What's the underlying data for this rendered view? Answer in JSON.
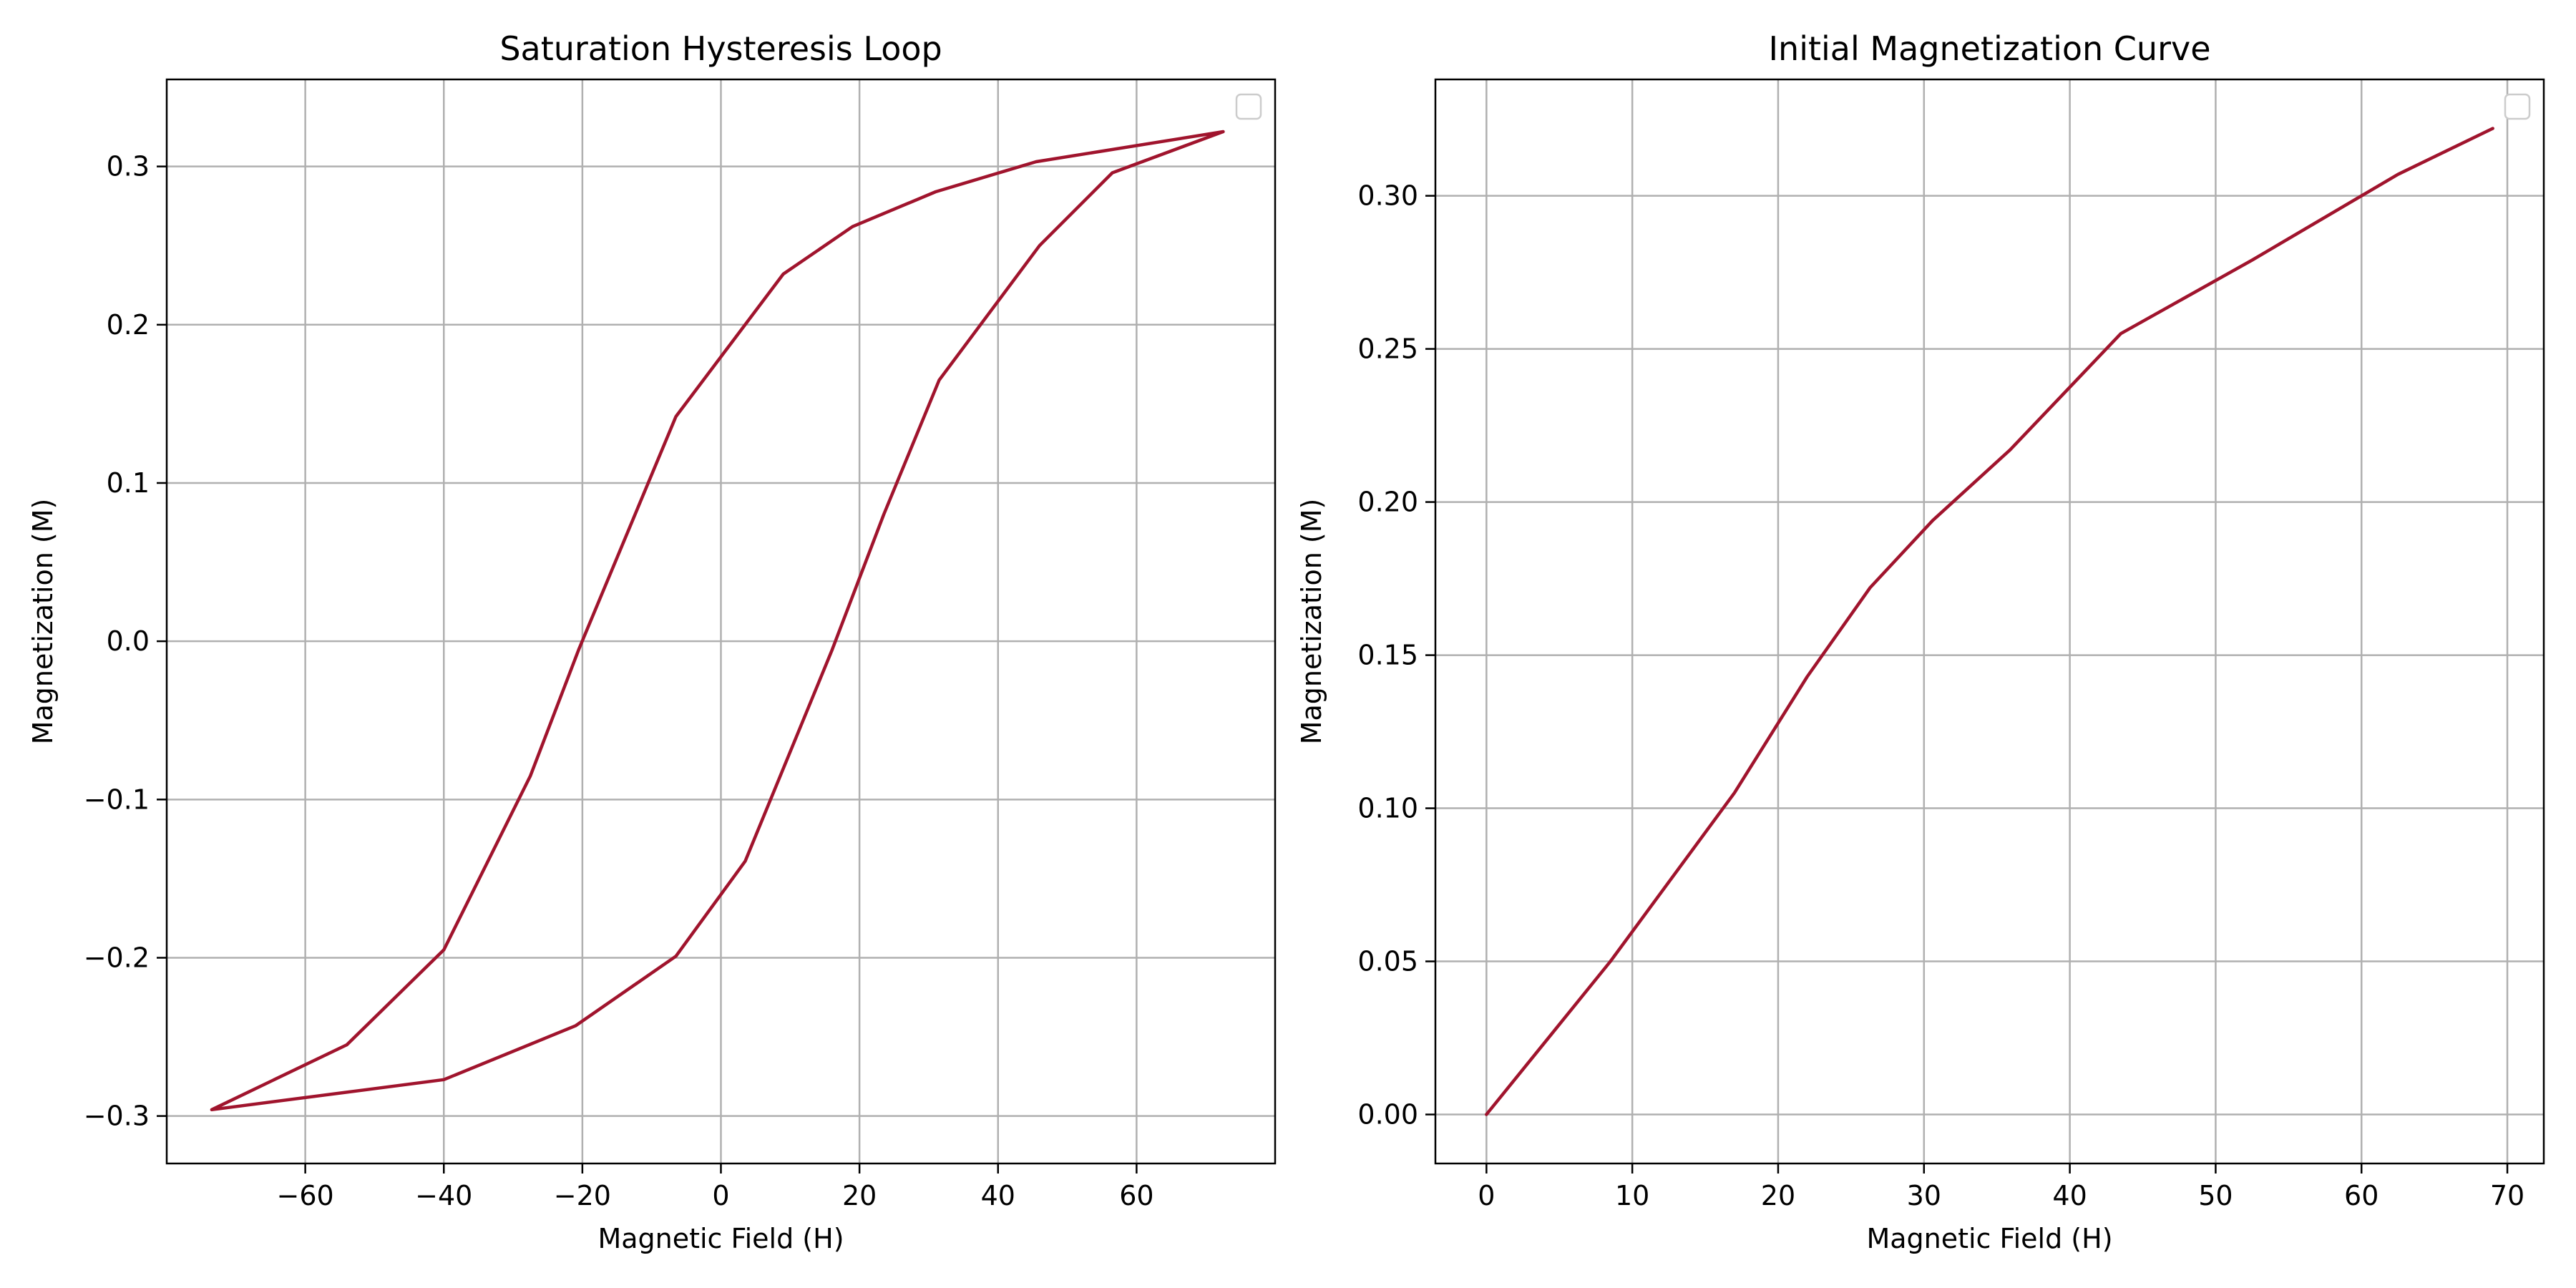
{
  "chart_data": [
    {
      "type": "line",
      "title": "Saturation Hysteresis Loop",
      "xlabel": "Magnetic Field (H)",
      "ylabel": "Magnetization (M)",
      "xlim": [
        -80,
        80
      ],
      "ylim": [
        -0.33,
        0.355
      ],
      "xticks": [
        -60,
        -40,
        -20,
        0,
        20,
        40,
        60
      ],
      "yticks": [
        -0.3,
        -0.2,
        -0.1,
        0.0,
        0.1,
        0.2,
        0.3
      ],
      "xtick_labels": [
        "−60",
        "−40",
        "−20",
        "0",
        "20",
        "40",
        "60"
      ],
      "ytick_labels": [
        "−0.3",
        "−0.2",
        "−0.1",
        "0.0",
        "0.1",
        "0.2",
        "0.3"
      ],
      "grid": true,
      "legend": "top-right (empty)",
      "color": "#a0142d",
      "series": [
        {
          "x": [
            72.5,
            56.5,
            46.0,
            31.5,
            23.5,
            16.0,
            3.5,
            -6.5,
            -21.0,
            -40.0,
            -73.5,
            -54.0,
            -40.0,
            -27.5,
            -20.5,
            -6.5,
            9.0,
            19.0,
            31.0,
            45.5,
            72.5
          ],
          "y": [
            0.322,
            0.296,
            0.25,
            0.165,
            0.08,
            -0.006,
            -0.139,
            -0.199,
            -0.243,
            -0.277,
            -0.296,
            -0.255,
            -0.195,
            -0.085,
            -0.005,
            0.142,
            0.232,
            0.262,
            0.284,
            0.303,
            0.322
          ]
        }
      ]
    },
    {
      "type": "line",
      "title": "Initial Magnetization Curve",
      "xlabel": "Magnetic Field (H)",
      "ylabel": "Magnetization (M)",
      "xlim": [
        -3.5,
        72.5
      ],
      "ylim": [
        -0.016,
        0.338
      ],
      "xticks": [
        0,
        10,
        20,
        30,
        40,
        50,
        60,
        70
      ],
      "yticks": [
        0.0,
        0.05,
        0.1,
        0.15,
        0.2,
        0.25,
        0.3
      ],
      "xtick_labels": [
        "0",
        "10",
        "20",
        "30",
        "40",
        "50",
        "60",
        "70"
      ],
      "ytick_labels": [
        "0.00",
        "0.05",
        "0.10",
        "0.15",
        "0.20",
        "0.25",
        "0.30"
      ],
      "grid": true,
      "legend": "top-right (empty)",
      "color": "#a0142d",
      "series": [
        {
          "x": [
            0,
            8.5,
            17.0,
            22.0,
            26.3,
            30.6,
            35.9,
            43.5,
            52.5,
            62.5,
            69.0
          ],
          "y": [
            0.0,
            0.05,
            0.105,
            0.143,
            0.172,
            0.194,
            0.217,
            0.255,
            0.279,
            0.307,
            0.322
          ]
        }
      ]
    }
  ]
}
